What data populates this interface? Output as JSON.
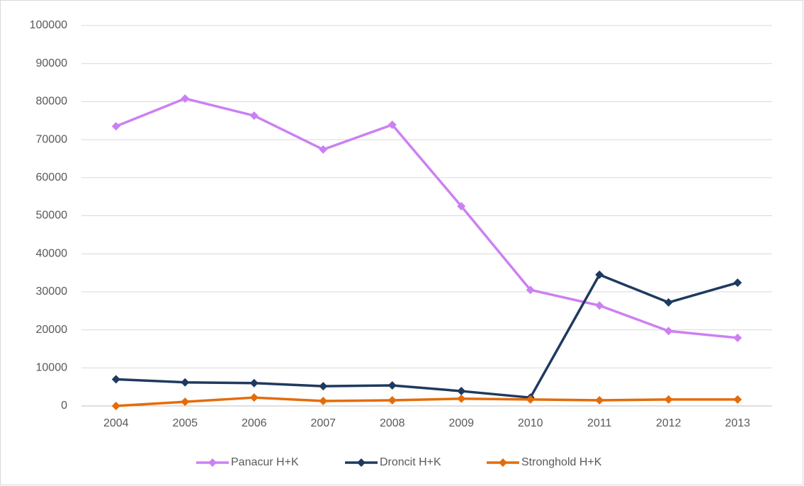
{
  "chart_data": {
    "type": "line",
    "categories": [
      "2004",
      "2005",
      "2006",
      "2007",
      "2008",
      "2009",
      "2010",
      "2011",
      "2012",
      "2013"
    ],
    "series": [
      {
        "name": "Panacur H+K",
        "color": "#cc80f2",
        "values": [
          73500,
          80800,
          76300,
          67400,
          73900,
          52500,
          30500,
          26400,
          19700,
          17900
        ]
      },
      {
        "name": "Droncit H+K",
        "color": "#1f3a5f",
        "values": [
          7000,
          6200,
          6000,
          5200,
          5400,
          3900,
          2200,
          34500,
          27200,
          32400
        ]
      },
      {
        "name": "Stronghold H+K",
        "color": "#e46c0a",
        "values": [
          0,
          1100,
          2200,
          1300,
          1500,
          1900,
          1700,
          1500,
          1700,
          1700
        ]
      }
    ],
    "ylim": [
      0,
      100000
    ],
    "yticks": [
      0,
      10000,
      20000,
      30000,
      40000,
      50000,
      60000,
      70000,
      80000,
      90000,
      100000
    ],
    "grid": true,
    "legend": "bottom"
  }
}
